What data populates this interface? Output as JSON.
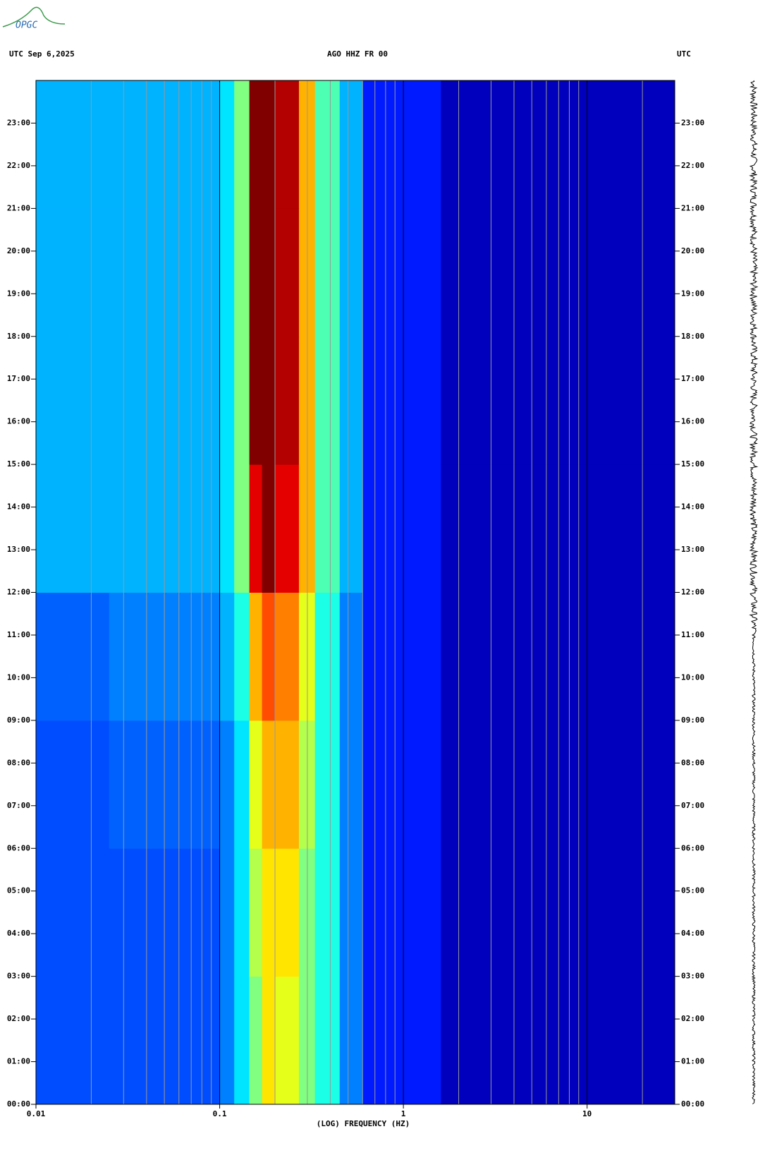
{
  "logo": "OPGC",
  "chart_data": {
    "type": "heatmap",
    "title_left": "UTC  Sep 6,2025",
    "title": "AGO HHZ FR 00",
    "title_right": "UTC",
    "x_label": "(LOG) FREQUENCY (HZ)",
    "x_log": true,
    "xlim": [
      0.01,
      30
    ],
    "xticks": [
      0.01,
      0.1,
      1,
      10
    ],
    "x_minor_grid": [
      0.02,
      0.03,
      0.04,
      0.05,
      0.06,
      0.07,
      0.08,
      0.09,
      0.2,
      0.3,
      0.4,
      0.5,
      0.6,
      0.7,
      0.8,
      0.9,
      2,
      3,
      4,
      5,
      6,
      7,
      8,
      9,
      20
    ],
    "ylim": [
      0,
      24
    ],
    "yticks": [
      {
        "value": 0,
        "label": "00:00"
      },
      {
        "value": 1,
        "label": "01:00"
      },
      {
        "value": 2,
        "label": "02:00"
      },
      {
        "value": 3,
        "label": "03:00"
      },
      {
        "value": 4,
        "label": "04:00"
      },
      {
        "value": 5,
        "label": "05:00"
      },
      {
        "value": 6,
        "label": "06:00"
      },
      {
        "value": 7,
        "label": "07:00"
      },
      {
        "value": 8,
        "label": "08:00"
      },
      {
        "value": 9,
        "label": "09:00"
      },
      {
        "value": 10,
        "label": "10:00"
      },
      {
        "value": 11,
        "label": "11:00"
      },
      {
        "value": 12,
        "label": "12:00"
      },
      {
        "value": 13,
        "label": "13:00"
      },
      {
        "value": 14,
        "label": "14:00"
      },
      {
        "value": 15,
        "label": "15:00"
      },
      {
        "value": 16,
        "label": "16:00"
      },
      {
        "value": 17,
        "label": "17:00"
      },
      {
        "value": 18,
        "label": "18:00"
      },
      {
        "value": 19,
        "label": "19:00"
      },
      {
        "value": 20,
        "label": "20:00"
      },
      {
        "value": 21,
        "label": "21:00"
      },
      {
        "value": 22,
        "label": "22:00"
      },
      {
        "value": 23,
        "label": "23:00"
      }
    ],
    "colormap": "jet",
    "zlim": [
      0,
      10
    ],
    "x_edges": [
      0.01,
      0.025,
      0.1,
      0.12,
      0.145,
      0.17,
      0.2,
      0.27,
      0.33,
      0.45,
      0.6,
      1.6,
      30
    ],
    "y_edges": [
      0,
      3,
      6,
      9,
      12,
      15,
      18,
      21,
      24
    ],
    "z": [
      [
        2,
        2,
        2.5,
        3.5,
        5,
        6.5,
        6,
        5,
        4,
        2.5,
        1.5,
        0.6
      ],
      [
        2,
        2,
        2.5,
        3.5,
        5.5,
        6.5,
        6.5,
        5,
        4,
        2.5,
        1.5,
        0.6
      ],
      [
        2,
        2.2,
        2.5,
        3.5,
        6,
        7,
        7,
        5.5,
        4,
        2.5,
        1.5,
        0.6
      ],
      [
        2.2,
        2.5,
        3,
        4,
        7,
        8,
        7.5,
        6,
        4,
        2.5,
        1.5,
        0.6
      ],
      [
        3,
        3,
        3.5,
        5,
        9,
        10,
        9,
        7,
        4.5,
        3,
        1.5,
        0.6
      ],
      [
        3,
        3,
        3.5,
        5,
        10,
        10,
        9.5,
        7,
        4.5,
        3,
        1.5,
        0.6
      ],
      [
        3,
        3,
        3.5,
        5,
        10,
        10,
        9.5,
        7,
        4.5,
        3,
        1.5,
        0.6
      ],
      [
        3,
        3,
        3.5,
        5,
        10,
        10,
        9.5,
        7,
        4.5,
        3,
        1.5,
        0.6
      ]
    ]
  }
}
